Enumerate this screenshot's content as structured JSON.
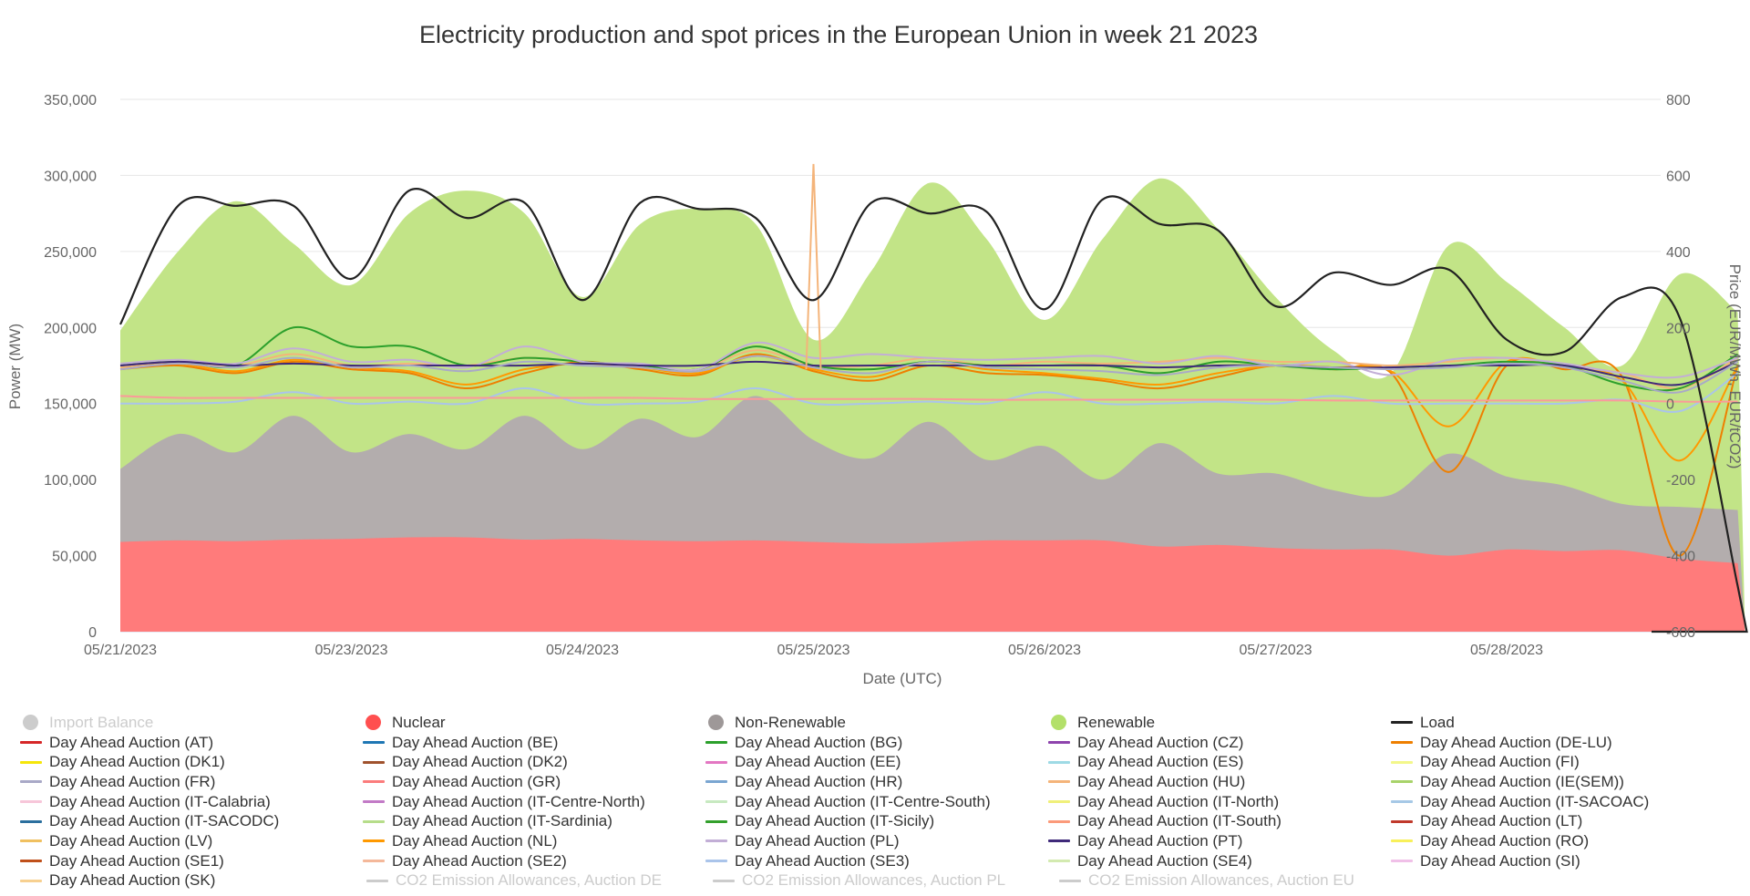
{
  "chart_data": {
    "type": "area",
    "title": "Electricity production and spot prices in the European Union in week 21 2023",
    "xlabel": "Date (UTC)",
    "ylabel": "Power (MW)",
    "y2label": "Price (EUR/MWh, EUR/tCO2)",
    "ylim": [
      0,
      350000
    ],
    "y2lim": [
      -600,
      800
    ],
    "yticks": [
      "0",
      "50,000",
      "100,000",
      "150,000",
      "200,000",
      "250,000",
      "300,000",
      "350,000"
    ],
    "y2ticks": [
      "-600",
      "-400",
      "-200",
      "0",
      "200",
      "400",
      "600",
      "800"
    ],
    "xtick_labels": [
      "05/21/2023",
      "05/23/2023",
      "05/24/2023",
      "05/25/2023",
      "05/26/2023",
      "05/27/2023",
      "05/28/2023"
    ],
    "xtick_pos": [
      0,
      1,
      2,
      3,
      4,
      5,
      6
    ],
    "x_hours": [
      0,
      6,
      12,
      18,
      24,
      30,
      36,
      42,
      48,
      54,
      60,
      66,
      72,
      78,
      84,
      90,
      96,
      102,
      108,
      114,
      120,
      126,
      132,
      138,
      144,
      150,
      156,
      162,
      168
    ],
    "xlim_hours": [
      0,
      168
    ],
    "grid": "horizontal",
    "legend_position": "bottom",
    "series": [
      {
        "name": "Nuclear",
        "kind": "area",
        "axis": "left",
        "color": "#ff7b7b",
        "values": [
          59000,
          60000,
          59500,
          60500,
          61000,
          62000,
          62000,
          60500,
          61000,
          60000,
          59500,
          60000,
          59000,
          58000,
          58500,
          60000,
          60000,
          60000,
          56000,
          57000,
          55000,
          54000,
          54000,
          50000,
          54000,
          53000,
          53500,
          48000,
          45000
        ]
      },
      {
        "name": "Non-Renewable",
        "kind": "area",
        "axis": "left",
        "color": "#b3adad",
        "values": [
          107000,
          130000,
          118000,
          142000,
          118000,
          130000,
          120000,
          142000,
          120000,
          140000,
          128000,
          155000,
          126000,
          114000,
          138000,
          113000,
          122000,
          100000,
          124000,
          104000,
          104000,
          93000,
          90000,
          117000,
          102000,
          96000,
          84000,
          82000,
          80000
        ]
      },
      {
        "name": "Renewable",
        "kind": "area",
        "axis": "left",
        "color": "#c2e487",
        "values": [
          198000,
          250000,
          283000,
          255000,
          228000,
          275000,
          290000,
          275000,
          220000,
          268000,
          278000,
          268000,
          192000,
          237000,
          295000,
          258000,
          205000,
          258000,
          298000,
          265000,
          220000,
          185000,
          170000,
          254000,
          230000,
          200000,
          175000,
          235000,
          210000
        ]
      },
      {
        "name": "Load",
        "kind": "line",
        "axis": "left",
        "color": "#222222",
        "values": [
          202000,
          280000,
          280000,
          280000,
          232000,
          290000,
          272000,
          282000,
          218000,
          282000,
          278000,
          272000,
          218000,
          282000,
          275000,
          276000,
          212000,
          284000,
          268000,
          264000,
          214000,
          236000,
          228000,
          238000,
          192000,
          184000,
          220000,
          206000,
          30000
        ]
      },
      {
        "name": "Day Ahead Auction (DE-LU)",
        "kind": "line",
        "axis": "right",
        "color": "#ee7f00",
        "values": [
          90,
          100,
          80,
          110,
          90,
          80,
          40,
          80,
          110,
          90,
          75,
          130,
          85,
          60,
          100,
          80,
          75,
          60,
          40,
          70,
          100,
          90,
          80,
          -180,
          100,
          90,
          70,
          -400,
          100
        ]
      },
      {
        "name": "Day Ahead Auction (NL)",
        "kind": "line",
        "axis": "right",
        "color": "#ff9900",
        "values": [
          95,
          105,
          85,
          115,
          95,
          85,
          50,
          90,
          105,
          95,
          80,
          125,
          90,
          70,
          110,
          90,
          80,
          65,
          50,
          80,
          100,
          95,
          85,
          -60,
          110,
          95,
          60,
          -150,
          100
        ]
      },
      {
        "name": "Day Ahead Auction (HU)",
        "kind": "line",
        "axis": "right",
        "color": "#f4b47a",
        "values": [
          95,
          110,
          100,
          130,
          100,
          105,
          100,
          120,
          110,
          100,
          90,
          140,
          100,
          100,
          120,
          100,
          110,
          105,
          110,
          120,
          110,
          110,
          100,
          110,
          120,
          100,
          80,
          40,
          120
        ]
      },
      {
        "name": "Day Ahead Auction (BG)",
        "kind": "line",
        "axis": "right",
        "color": "#2ca02c",
        "values": [
          100,
          110,
          100,
          200,
          150,
          150,
          100,
          120,
          110,
          100,
          90,
          150,
          100,
          90,
          110,
          100,
          100,
          100,
          80,
          110,
          100,
          90,
          95,
          100,
          110,
          100,
          50,
          40,
          130
        ]
      },
      {
        "name": "Day Ahead Auction (PL)",
        "kind": "line",
        "axis": "right",
        "color": "#c2aed6",
        "values": [
          105,
          115,
          105,
          145,
          110,
          115,
          95,
          150,
          110,
          105,
          90,
          160,
          120,
          130,
          120,
          115,
          120,
          125,
          105,
          125,
          100,
          110,
          75,
          115,
          120,
          105,
          80,
          70,
          120
        ]
      },
      {
        "name": "Day Ahead Auction (PT)",
        "kind": "line",
        "axis": "right",
        "color": "#3f2a7a",
        "values": [
          100,
          110,
          100,
          105,
          100,
          100,
          100,
          100,
          105,
          100,
          100,
          110,
          100,
          100,
          100,
          100,
          100,
          100,
          95,
          100,
          100,
          95,
          95,
          100,
          100,
          100,
          70,
          50,
          110
        ]
      },
      {
        "name": "Day Ahead Auction (FR)",
        "kind": "line",
        "axis": "right",
        "color": "#a9a9c7",
        "values": [
          90,
          105,
          95,
          120,
          95,
          100,
          85,
          110,
          100,
          95,
          85,
          125,
          95,
          80,
          110,
          95,
          90,
          85,
          75,
          95,
          100,
          95,
          90,
          95,
          105,
          95,
          60,
          30,
          110
        ]
      },
      {
        "name": "Day Ahead Auction (SE3)",
        "kind": "line",
        "axis": "right",
        "color": "#aac4ea",
        "values": [
          0,
          0,
          5,
          30,
          0,
          5,
          0,
          40,
          0,
          0,
          5,
          40,
          0,
          0,
          5,
          0,
          30,
          0,
          0,
          5,
          0,
          20,
          0,
          0,
          0,
          0,
          10,
          -20,
          80
        ]
      },
      {
        "name": "Day Ahead Auction (GR)",
        "kind": "line",
        "axis": "right",
        "color": "#fb9a99",
        "values": [
          20,
          15,
          15,
          15,
          15,
          15,
          15,
          15,
          15,
          15,
          12,
          12,
          12,
          12,
          12,
          10,
          10,
          10,
          10,
          10,
          10,
          8,
          8,
          8,
          8,
          8,
          8,
          5,
          5
        ]
      }
    ],
    "spike": {
      "name": "Day Ahead Auction (HU)",
      "x_hour": 72,
      "value": 630
    },
    "legend": [
      {
        "label": "Import Balance",
        "color": "#cccccc",
        "type": "dot",
        "off": true
      },
      {
        "label": "Nuclear",
        "color": "#ff4f4f",
        "type": "dot"
      },
      {
        "label": "Non-Renewable",
        "color": "#9e9898",
        "type": "dot"
      },
      {
        "label": "Renewable",
        "color": "#b3e06a",
        "type": "dot"
      },
      {
        "label": "Load",
        "color": "#222222",
        "type": "line"
      },
      {
        "label": "Day Ahead Auction (AT)",
        "color": "#d62728",
        "type": "line"
      },
      {
        "label": "Day Ahead Auction (BE)",
        "color": "#1f77b4",
        "type": "line"
      },
      {
        "label": "Day Ahead Auction (BG)",
        "color": "#2ca02c",
        "type": "line"
      },
      {
        "label": "Day Ahead Auction (CZ)",
        "color": "#8e44ad",
        "type": "line"
      },
      {
        "label": "Day Ahead Auction (DE-LU)",
        "color": "#ee7f00",
        "type": "line"
      },
      {
        "label": "Day Ahead Auction (DK1)",
        "color": "#f5e60a",
        "type": "line"
      },
      {
        "label": "Day Ahead Auction (DK2)",
        "color": "#a0522d",
        "type": "line"
      },
      {
        "label": "Day Ahead Auction (EE)",
        "color": "#e377c2",
        "type": "line"
      },
      {
        "label": "Day Ahead Auction (ES)",
        "color": "#9edae5",
        "type": "line"
      },
      {
        "label": "Day Ahead Auction (FI)",
        "color": "#f3f78a",
        "type": "line"
      },
      {
        "label": "Day Ahead Auction (FR)",
        "color": "#a9a9c7",
        "type": "line"
      },
      {
        "label": "Day Ahead Auction (GR)",
        "color": "#fb7c7c",
        "type": "line"
      },
      {
        "label": "Day Ahead Auction (HR)",
        "color": "#7aa6d1",
        "type": "line"
      },
      {
        "label": "Day Ahead Auction (HU)",
        "color": "#f4b47a",
        "type": "line"
      },
      {
        "label": "Day Ahead Auction (IE(SEM))",
        "color": "#a8d36a",
        "type": "line"
      },
      {
        "label": "Day Ahead Auction (IT-Calabria)",
        "color": "#f7c6d9",
        "type": "line"
      },
      {
        "label": "Day Ahead Auction (IT-Centre-North)",
        "color": "#c27ac6",
        "type": "line"
      },
      {
        "label": "Day Ahead Auction (IT-Centre-South)",
        "color": "#c7e9c0",
        "type": "line"
      },
      {
        "label": "Day Ahead Auction (IT-North)",
        "color": "#f0f07a",
        "type": "line"
      },
      {
        "label": "Day Ahead Auction (IT-SACOAC)",
        "color": "#a6c8e6",
        "type": "line"
      },
      {
        "label": "Day Ahead Auction (IT-SACODC)",
        "color": "#2b6f9e",
        "type": "line"
      },
      {
        "label": "Day Ahead Auction (IT-Sardinia)",
        "color": "#b6dd8a",
        "type": "line"
      },
      {
        "label": "Day Ahead Auction (IT-Sicily)",
        "color": "#33a02c",
        "type": "line"
      },
      {
        "label": "Day Ahead Auction (IT-South)",
        "color": "#fb9a7a",
        "type": "line"
      },
      {
        "label": "Day Ahead Auction (LT)",
        "color": "#c0392b",
        "type": "line"
      },
      {
        "label": "Day Ahead Auction (LV)",
        "color": "#f0c060",
        "type": "line"
      },
      {
        "label": "Day Ahead Auction (NL)",
        "color": "#ff9900",
        "type": "line"
      },
      {
        "label": "Day Ahead Auction (PL)",
        "color": "#c2aed6",
        "type": "line"
      },
      {
        "label": "Day Ahead Auction (PT)",
        "color": "#3f2a7a",
        "type": "line"
      },
      {
        "label": "Day Ahead Auction (RO)",
        "color": "#f8f05a",
        "type": "line"
      },
      {
        "label": "Day Ahead Auction (SE1)",
        "color": "#c0501a",
        "type": "line"
      },
      {
        "label": "Day Ahead Auction (SE2)",
        "color": "#f4b89a",
        "type": "line"
      },
      {
        "label": "Day Ahead Auction (SE3)",
        "color": "#aac4ea",
        "type": "line"
      },
      {
        "label": "Day Ahead Auction (SE4)",
        "color": "#d3eab0",
        "type": "line"
      },
      {
        "label": "Day Ahead Auction (SI)",
        "color": "#f0c0e8",
        "type": "line"
      },
      {
        "label": "Day Ahead Auction (SK)",
        "color": "#f7d090",
        "type": "line"
      },
      {
        "label": "CO2 Emission Allowances, Auction DE",
        "color": "#cccccc",
        "type": "line",
        "off": true
      },
      {
        "label": "CO2 Emission Allowances, Auction PL",
        "color": "#cccccc",
        "type": "line",
        "off": true
      },
      {
        "label": "CO2 Emission Allowances, Auction EU",
        "color": "#cccccc",
        "type": "line",
        "off": true
      }
    ]
  }
}
